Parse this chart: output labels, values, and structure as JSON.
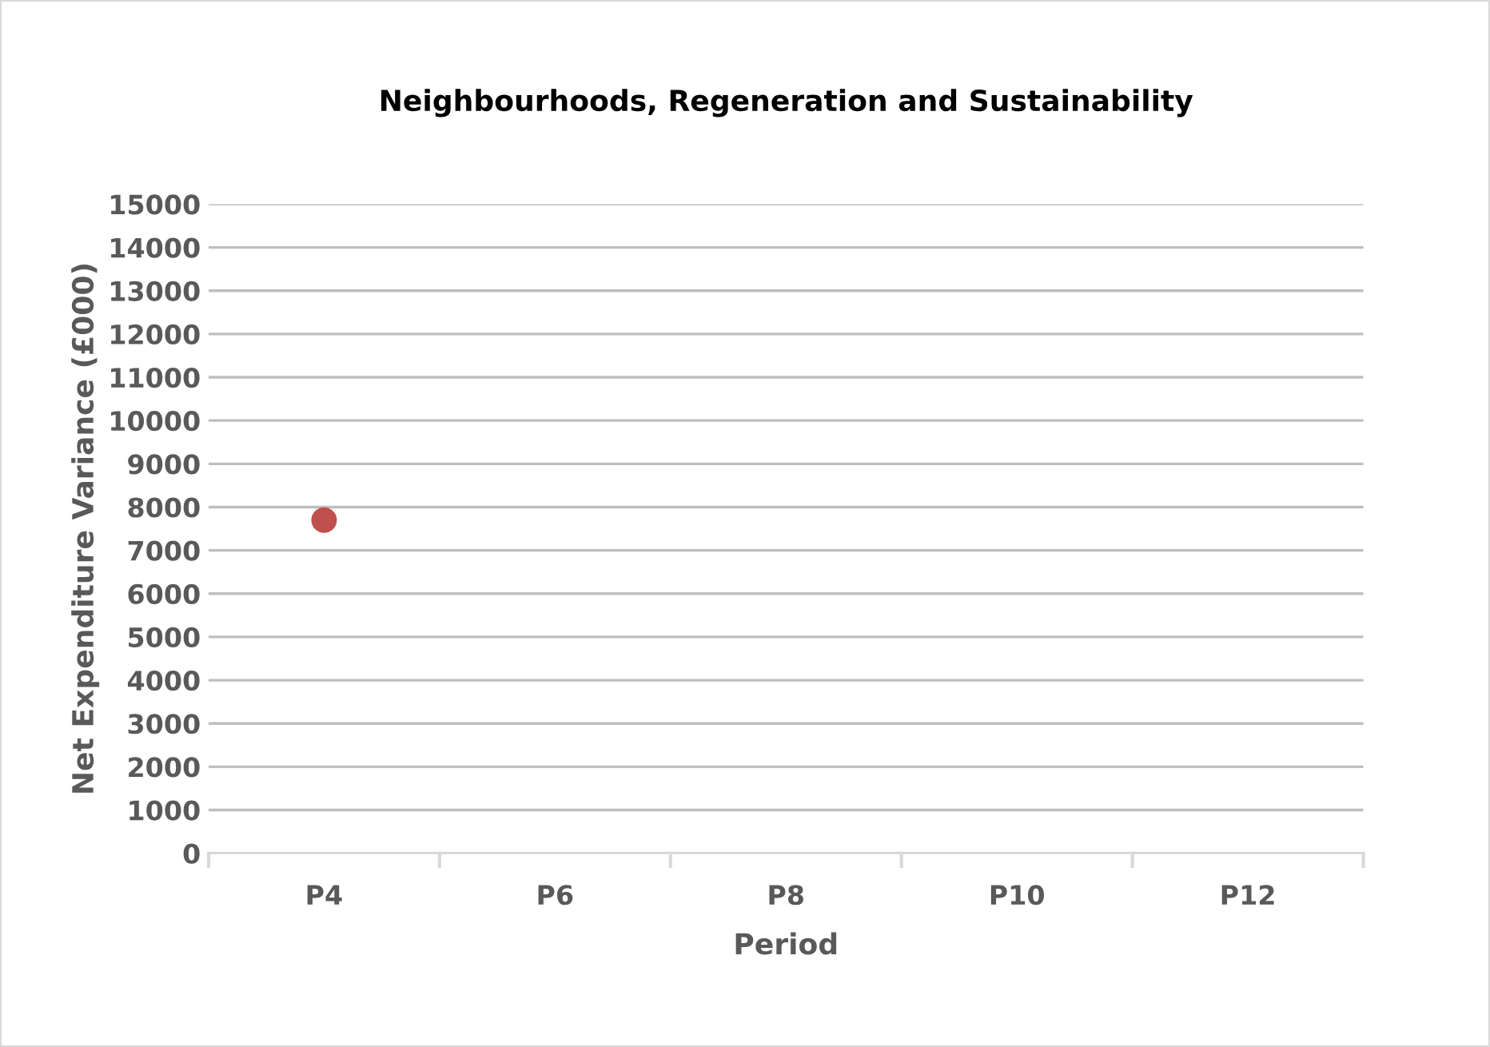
{
  "chart_data": {
    "type": "scatter",
    "title": "Neighbourhoods, Regeneration and Sustainability",
    "xlabel": "Period",
    "ylabel": "Net Expenditure Variance (£000)",
    "categories": [
      "P4",
      "P6",
      "P8",
      "P10",
      "P12"
    ],
    "series": [
      {
        "color": "#c0504d",
        "values": [
          7700,
          null,
          null,
          null,
          null
        ]
      }
    ],
    "ylim": [
      0,
      15000
    ],
    "yticks": [
      0,
      1000,
      2000,
      3000,
      4000,
      5000,
      6000,
      7000,
      8000,
      9000,
      10000,
      11000,
      12000,
      13000,
      14000,
      15000
    ],
    "grid": "y",
    "marker": "circle",
    "legend": false
  }
}
